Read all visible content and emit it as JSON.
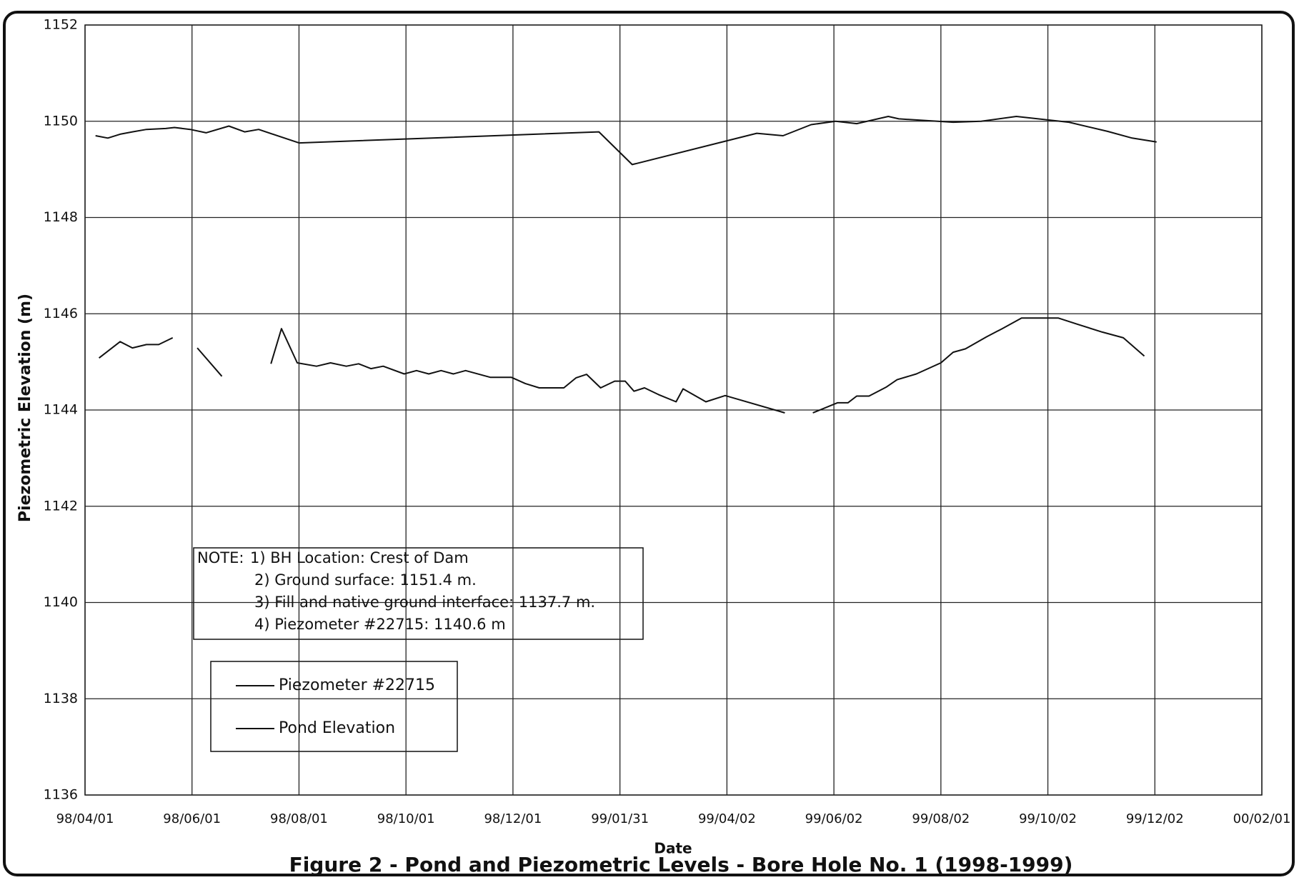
{
  "chart_data": {
    "type": "line",
    "title": "Figure 2 - Pond and Piezometric Levels - Bore Hole No. 1 (1998-1999)",
    "x_label": "Date",
    "y_label": "Piezometric Elevation (m)",
    "xlim": [
      "98/04/01",
      "00/02/01"
    ],
    "xticks": [
      "98/04/01",
      "98/06/01",
      "98/08/01",
      "98/10/01",
      "98/12/01",
      "99/01/31",
      "99/04/02",
      "99/06/02",
      "99/08/02",
      "99/10/02",
      "99/12/02",
      "00/02/01"
    ],
    "ylim": [
      1136,
      1152
    ],
    "yticks": [
      1136,
      1138,
      1140,
      1142,
      1144,
      1146,
      1148,
      1150,
      1152
    ],
    "grid": true,
    "note_label": "NOTE:",
    "notes": [
      "1) BH Location: Crest of Dam",
      "2) Ground surface: 1151.4 m.",
      "3) Fill and native ground interface: 1137.7 m.",
      "4) Piezometer #22715: 1140.6 m"
    ],
    "series": [
      {
        "name": "Piezometer #22715",
        "color": "#111111",
        "x": [
          "98/04/09",
          "98/04/21",
          "98/04/28",
          "98/05/06",
          "98/05/13",
          "98/05/21",
          "98/05/28",
          "98/06/04",
          "98/06/18",
          "98/07/02",
          "98/07/16",
          "98/07/22",
          "98/07/31",
          "98/08/11",
          "98/08/19",
          "98/08/28",
          "98/09/04",
          "98/09/11",
          "98/09/18",
          "98/09/30",
          "98/10/07",
          "98/10/14",
          "98/10/21",
          "98/10/28",
          "98/11/04",
          "98/11/18",
          "98/11/30",
          "98/12/08",
          "98/12/16",
          "98/12/30",
          "99/01/06",
          "99/01/12",
          "99/01/20",
          "99/01/28",
          "99/02/03",
          "99/02/08",
          "99/02/14",
          "99/02/22",
          "99/03/04",
          "99/03/08",
          "99/03/21",
          "99/04/01",
          "99/05/05",
          "99/05/13",
          "99/05/21",
          "99/06/04",
          "99/06/10",
          "99/06/15",
          "99/06/22",
          "99/07/02",
          "99/07/08",
          "99/07/19",
          "99/08/02",
          "99/08/09",
          "99/08/16",
          "99/08/28",
          "99/09/06",
          "99/09/17",
          "99/10/08",
          "99/10/19",
          "99/11/02",
          "99/11/14",
          "99/11/26"
        ],
        "values": [
          1145.08,
          1145.42,
          1145.29,
          1145.36,
          1145.36,
          1145.5,
          null,
          1145.29,
          1144.7,
          null,
          1144.96,
          1145.69,
          1144.98,
          1144.91,
          1144.98,
          1144.91,
          1144.96,
          1144.86,
          1144.91,
          1144.75,
          1144.82,
          1144.75,
          1144.82,
          1144.75,
          1144.82,
          1144.68,
          1144.68,
          1144.55,
          1144.46,
          1144.46,
          1144.67,
          1144.74,
          1144.46,
          1144.6,
          1144.6,
          1144.39,
          1144.46,
          1144.32,
          1144.17,
          1144.44,
          1144.17,
          1144.3,
          1143.94,
          null,
          1143.94,
          1144.15,
          1144.15,
          1144.29,
          1144.29,
          1144.48,
          1144.63,
          1144.75,
          1144.98,
          1145.2,
          1145.27,
          1145.52,
          1145.69,
          1145.91,
          1145.91,
          1145.78,
          1145.62,
          1145.5,
          1145.12
        ]
      },
      {
        "name": "Pond Elevation",
        "color": "#111111",
        "x": [
          "98/04/07",
          "98/04/14",
          "98/04/21",
          "98/04/28",
          "98/05/06",
          "98/05/17",
          "98/05/22",
          "98/05/31",
          "98/06/09",
          "98/06/22",
          "98/07/01",
          "98/07/09",
          "98/08/01",
          "99/01/19",
          "99/02/07",
          "99/04/19",
          "99/05/04",
          "99/05/20",
          "99/06/03",
          "99/06/15",
          "99/07/03",
          "99/07/09",
          "99/08/09",
          "99/08/25",
          "99/09/14",
          "99/10/14",
          "99/11/05",
          "99/11/19",
          "99/12/03"
        ],
        "values": [
          1149.7,
          1149.65,
          1149.73,
          1149.78,
          1149.83,
          1149.85,
          1149.87,
          1149.83,
          1149.76,
          1149.9,
          1149.78,
          1149.83,
          1149.55,
          1149.78,
          1149.1,
          1149.75,
          1149.7,
          1149.93,
          1150.0,
          1149.95,
          1150.1,
          1150.05,
          1149.98,
          1150.0,
          1150.1,
          1149.98,
          1149.79,
          1149.65,
          1149.57
        ]
      }
    ]
  }
}
